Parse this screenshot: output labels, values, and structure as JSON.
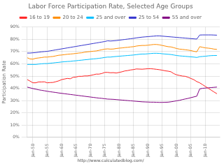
{
  "chart_data": {
    "type": "line",
    "title": "Labor Force Participation Rate, Selected Age Groups",
    "ylabel": "Participation Rate",
    "annotations": [
      "http://www.calculatedblog.com/"
    ],
    "x": [
      1948,
      1949,
      1950,
      1951,
      1952,
      1953,
      1954,
      1955,
      1956,
      1957,
      1958,
      1959,
      1960,
      1961,
      1962,
      1963,
      1964,
      1965,
      1966,
      1967,
      1968,
      1969,
      1970,
      1971,
      1972,
      1973,
      1974,
      1975,
      1976,
      1977,
      1978,
      1979,
      1980,
      1981,
      1982,
      1983,
      1984,
      1985,
      1986,
      1987,
      1988,
      1989,
      1990,
      1991,
      1992,
      1993,
      1994,
      1995,
      1996,
      1997,
      1998,
      1999,
      2000,
      2001,
      2002,
      2003,
      2004,
      2005,
      2006,
      2007,
      2008,
      2009,
      2010,
      2011,
      2012,
      2013,
      2014
    ],
    "xlim": [
      1948,
      2015
    ],
    "xticks": [
      {
        "value": 1950,
        "label": "Jan-50"
      },
      {
        "value": 1955,
        "label": "Jan-55"
      },
      {
        "value": 1960,
        "label": "Jan-60"
      },
      {
        "value": 1965,
        "label": "Jan-65"
      },
      {
        "value": 1970,
        "label": "Jan-70"
      },
      {
        "value": 1975,
        "label": "Jan-75"
      },
      {
        "value": 1980,
        "label": "Jan-80"
      },
      {
        "value": 1985,
        "label": "Jan-85"
      },
      {
        "value": 1990,
        "label": "Jan-90"
      },
      {
        "value": 1995,
        "label": "Jan-95"
      },
      {
        "value": 2000,
        "label": "Jan-00"
      },
      {
        "value": 2005,
        "label": "Jan-05"
      },
      {
        "value": 2010,
        "label": "Jan-10"
      }
    ],
    "ylim": [
      0,
      0.9
    ],
    "yticks": [
      {
        "value": 0.0,
        "label": "0%"
      },
      {
        "value": 0.1,
        "label": "10%"
      },
      {
        "value": 0.2,
        "label": "20%"
      },
      {
        "value": 0.3,
        "label": "30%"
      },
      {
        "value": 0.4,
        "label": "40%"
      },
      {
        "value": 0.5,
        "label": "50%"
      },
      {
        "value": 0.6,
        "label": "60%"
      },
      {
        "value": 0.7,
        "label": "70%"
      },
      {
        "value": 0.8,
        "label": "80%"
      },
      {
        "value": 0.9,
        "label": "90%"
      }
    ],
    "grid": true,
    "legend": "top",
    "series": [
      {
        "name": "16 to 19",
        "color": "#ff2222",
        "values": [
          0.472,
          0.459,
          0.445,
          0.445,
          0.452,
          0.452,
          0.453,
          0.445,
          0.447,
          0.448,
          0.454,
          0.461,
          0.471,
          0.476,
          0.481,
          0.478,
          0.49,
          0.492,
          0.498,
          0.498,
          0.501,
          0.501,
          0.505,
          0.51,
          0.516,
          0.516,
          0.521,
          0.53,
          0.53,
          0.527,
          0.528,
          0.525,
          0.53,
          0.535,
          0.542,
          0.545,
          0.55,
          0.553,
          0.558,
          0.557,
          0.556,
          0.558,
          0.56,
          0.56,
          0.558,
          0.555,
          0.552,
          0.548,
          0.543,
          0.54,
          0.535,
          0.52,
          0.51,
          0.505,
          0.5,
          0.498,
          0.49,
          0.48,
          0.47,
          0.455,
          0.445,
          0.43,
          0.415,
          0.4,
          0.385,
          0.37,
          0.356
        ]
      },
      {
        "name": "20 to 24",
        "color": "#ff8c00",
        "values": [
          0.65,
          0.64,
          0.638,
          0.645,
          0.648,
          0.651,
          0.655,
          0.655,
          0.658,
          0.66,
          0.665,
          0.67,
          0.672,
          0.675,
          0.678,
          0.68,
          0.682,
          0.685,
          0.688,
          0.69,
          0.695,
          0.698,
          0.7,
          0.703,
          0.705,
          0.71,
          0.715,
          0.72,
          0.722,
          0.72,
          0.721,
          0.725,
          0.728,
          0.73,
          0.733,
          0.735,
          0.738,
          0.74,
          0.745,
          0.748,
          0.75,
          0.75,
          0.752,
          0.755,
          0.758,
          0.758,
          0.755,
          0.75,
          0.745,
          0.74,
          0.738,
          0.732,
          0.725,
          0.72,
          0.718,
          0.715,
          0.712,
          0.708,
          0.702,
          0.698,
          0.74,
          0.735,
          0.73,
          0.728,
          0.725,
          0.72,
          0.718
        ]
      },
      {
        "name": "25 and over",
        "color": "#00bfff",
        "values": [
          0.595,
          0.595,
          0.595,
          0.595,
          0.598,
          0.6,
          0.602,
          0.602,
          0.605,
          0.607,
          0.61,
          0.612,
          0.615,
          0.617,
          0.619,
          0.62,
          0.623,
          0.625,
          0.628,
          0.63,
          0.633,
          0.635,
          0.638,
          0.64,
          0.642,
          0.645,
          0.648,
          0.652,
          0.655,
          0.655,
          0.658,
          0.66,
          0.662,
          0.664,
          0.666,
          0.668,
          0.67,
          0.672,
          0.675,
          0.678,
          0.68,
          0.68,
          0.682,
          0.684,
          0.686,
          0.686,
          0.685,
          0.682,
          0.68,
          0.678,
          0.676,
          0.672,
          0.668,
          0.665,
          0.663,
          0.661,
          0.659,
          0.657,
          0.655,
          0.652,
          0.658,
          0.66,
          0.662,
          0.665,
          0.667,
          0.668,
          0.668
        ]
      },
      {
        "name": "25 to 54",
        "color": "#3333cc",
        "values": [
          0.688,
          0.688,
          0.69,
          0.692,
          0.695,
          0.698,
          0.7,
          0.702,
          0.706,
          0.71,
          0.714,
          0.718,
          0.722,
          0.726,
          0.73,
          0.734,
          0.738,
          0.742,
          0.746,
          0.75,
          0.754,
          0.758,
          0.762,
          0.766,
          0.77,
          0.774,
          0.778,
          0.782,
          0.788,
          0.786,
          0.788,
          0.79,
          0.793,
          0.796,
          0.799,
          0.802,
          0.805,
          0.808,
          0.812,
          0.815,
          0.818,
          0.82,
          0.822,
          0.824,
          0.826,
          0.828,
          0.828,
          0.826,
          0.824,
          0.822,
          0.82,
          0.818,
          0.816,
          0.814,
          0.812,
          0.81,
          0.808,
          0.806,
          0.804,
          0.802,
          0.835,
          0.836,
          0.836,
          0.836,
          0.836,
          0.835,
          0.834
        ]
      },
      {
        "name": "55 and over",
        "color": "#800080",
        "values": [
          0.41,
          0.404,
          0.398,
          0.393,
          0.388,
          0.384,
          0.38,
          0.376,
          0.372,
          0.369,
          0.366,
          0.362,
          0.359,
          0.356,
          0.353,
          0.35,
          0.347,
          0.344,
          0.341,
          0.338,
          0.335,
          0.332,
          0.329,
          0.326,
          0.323,
          0.32,
          0.318,
          0.315,
          0.312,
          0.311,
          0.31,
          0.308,
          0.306,
          0.304,
          0.302,
          0.3,
          0.298,
          0.296,
          0.294,
          0.292,
          0.29,
          0.289,
          0.288,
          0.287,
          0.287,
          0.286,
          0.285,
          0.285,
          0.286,
          0.287,
          0.29,
          0.294,
          0.298,
          0.302,
          0.308,
          0.313,
          0.318,
          0.324,
          0.33,
          0.336,
          0.395,
          0.4,
          0.402,
          0.404,
          0.406,
          0.408,
          0.41
        ]
      }
    ]
  }
}
